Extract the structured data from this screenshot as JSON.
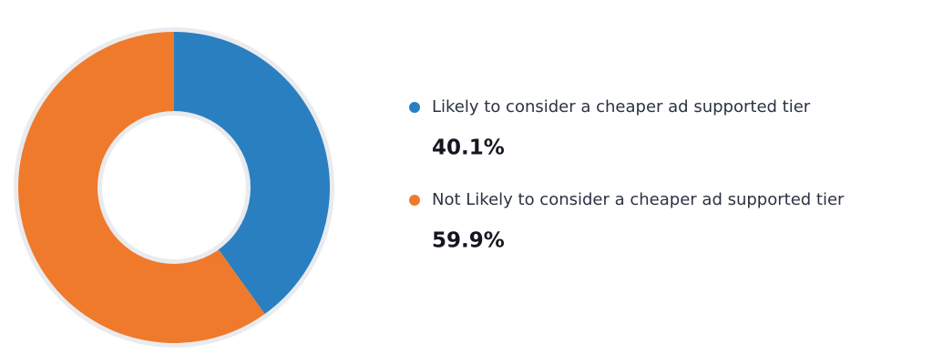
{
  "chart_data": {
    "type": "donut",
    "categories": [
      "Likely to consider a cheaper ad supported tier",
      "Not Likely to consider a cheaper ad supported tier"
    ],
    "values": [
      40.1,
      59.9
    ],
    "value_labels": [
      "40.1%",
      "59.9%"
    ],
    "colors": [
      "#2a7fc1",
      "#ef7a2b"
    ]
  }
}
